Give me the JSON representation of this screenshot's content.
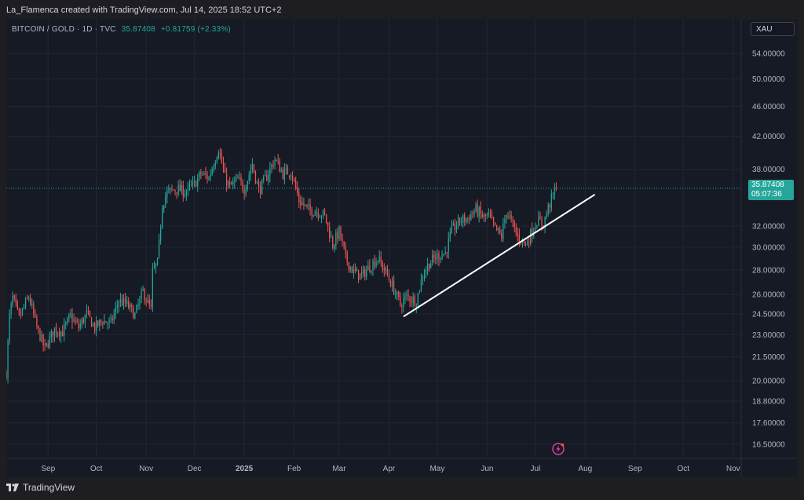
{
  "caption": "La_Flamenca created with TradingView.com, Jul 14, 2025 18:52 UTC+2",
  "symbol": {
    "name": "BITCOIN / GOLD · 1D · TVC",
    "last": "35.87408",
    "change": "+0.81759 (+2.33%)"
  },
  "currency": "XAU",
  "price_tag": {
    "price": "35.87408",
    "countdown": "05:07:36"
  },
  "footer": {
    "brand": "TradingView"
  },
  "colors": {
    "up": "#26a69a",
    "down": "#ef5350",
    "background": "#161a25",
    "grid": "#232632",
    "axis_text": "#b2b5be",
    "trendline": "#ffffff"
  },
  "chart_data": {
    "type": "candlestick",
    "scale": "log",
    "grid": true,
    "y_ticks": [
      16.5,
      17.6,
      18.8,
      20.0,
      21.5,
      23.0,
      24.5,
      26.0,
      28.0,
      30.0,
      32.0,
      38.0,
      42.0,
      46.0,
      50.0,
      54.0
    ],
    "y_tick_labels": [
      "16.50000",
      "17.60000",
      "18.80000",
      "20.00000",
      "21.50000",
      "23.00000",
      "24.50000",
      "26.00000",
      "28.00000",
      "30.00000",
      "32.00000",
      "38.00000",
      "42.00000",
      "46.00000",
      "50.00000",
      "54.00000"
    ],
    "x_labels": [
      "Sep",
      "Oct",
      "Nov",
      "Dec",
      "2025",
      "Feb",
      "Mar",
      "Apr",
      "May",
      "Jun",
      "Jul",
      "Aug",
      "Sep",
      "Oct",
      "Nov"
    ],
    "x_label_dates": [
      "2024-09-01",
      "2024-10-01",
      "2024-11-01",
      "2024-12-01",
      "2025-01-01",
      "2025-02-01",
      "2025-03-01",
      "2025-04-01",
      "2025-05-01",
      "2025-06-01",
      "2025-07-01",
      "2025-08-01",
      "2025-09-01",
      "2025-10-01",
      "2025-11-01"
    ],
    "x_range": [
      "2024-08-06",
      "2025-11-06"
    ],
    "y_range": [
      15.8,
      60.0
    ],
    "last_price": 35.87408,
    "anchors": [
      [
        "2024-08-06",
        20.5
      ],
      [
        "2024-08-08",
        24.3
      ],
      [
        "2024-08-10",
        25.7
      ],
      [
        "2024-08-14",
        24.2
      ],
      [
        "2024-08-20",
        25.8
      ],
      [
        "2024-08-25",
        23.5
      ],
      [
        "2024-08-30",
        22.0
      ],
      [
        "2024-09-05",
        23.4
      ],
      [
        "2024-09-10",
        23.2
      ],
      [
        "2024-09-15",
        24.3
      ],
      [
        "2024-09-20",
        23.5
      ],
      [
        "2024-09-25",
        24.5
      ],
      [
        "2024-09-30",
        23.5
      ],
      [
        "2024-10-05",
        24.0
      ],
      [
        "2024-10-10",
        23.8
      ],
      [
        "2024-10-15",
        25.5
      ],
      [
        "2024-10-20",
        25.2
      ],
      [
        "2024-10-25",
        24.4
      ],
      [
        "2024-10-30",
        26.2
      ],
      [
        "2024-11-02",
        25.3
      ],
      [
        "2024-11-04",
        24.8
      ],
      [
        "2024-11-05",
        27.8
      ],
      [
        "2024-11-08",
        28.6
      ],
      [
        "2024-11-09",
        30.2
      ],
      [
        "2024-11-11",
        34.2
      ],
      [
        "2024-11-14",
        35.4
      ],
      [
        "2024-11-20",
        35.8
      ],
      [
        "2024-11-25",
        35.5
      ],
      [
        "2024-12-01",
        36.3
      ],
      [
        "2024-12-05",
        37.5
      ],
      [
        "2024-12-10",
        37.0
      ],
      [
        "2024-12-16",
        40.5
      ],
      [
        "2024-12-20",
        37.0
      ],
      [
        "2024-12-23",
        36.0
      ],
      [
        "2024-12-28",
        36.8
      ],
      [
        "2025-01-01",
        35.8
      ],
      [
        "2025-01-06",
        38.6
      ],
      [
        "2025-01-10",
        35.6
      ],
      [
        "2025-01-15",
        37.2
      ],
      [
        "2025-01-20",
        39.2
      ],
      [
        "2025-01-25",
        37.5
      ],
      [
        "2025-01-30",
        37.8
      ],
      [
        "2025-02-04",
        34.6
      ],
      [
        "2025-02-10",
        33.6
      ],
      [
        "2025-02-15",
        33.5
      ],
      [
        "2025-02-20",
        33.0
      ],
      [
        "2025-02-25",
        30.2
      ],
      [
        "2025-03-01",
        31.5
      ],
      [
        "2025-03-05",
        29.0
      ],
      [
        "2025-03-10",
        27.8
      ],
      [
        "2025-03-15",
        27.5
      ],
      [
        "2025-03-20",
        28.3
      ],
      [
        "2025-03-25",
        29.0
      ],
      [
        "2025-03-30",
        27.8
      ],
      [
        "2025-04-04",
        26.4
      ],
      [
        "2025-04-08",
        25.2
      ],
      [
        "2025-04-12",
        25.8
      ],
      [
        "2025-04-18",
        25.5
      ],
      [
        "2025-04-22",
        27.6
      ],
      [
        "2025-04-26",
        28.6
      ],
      [
        "2025-05-01",
        29.2
      ],
      [
        "2025-05-06",
        29.5
      ],
      [
        "2025-05-10",
        31.5
      ],
      [
        "2025-05-15",
        32.5
      ],
      [
        "2025-05-20",
        32.8
      ],
      [
        "2025-05-25",
        33.6
      ],
      [
        "2025-05-30",
        32.8
      ],
      [
        "2025-06-02",
        33.0
      ],
      [
        "2025-06-06",
        31.7
      ],
      [
        "2025-06-10",
        31.0
      ],
      [
        "2025-06-13",
        33.5
      ],
      [
        "2025-06-17",
        32.0
      ],
      [
        "2025-06-20",
        31.0
      ],
      [
        "2025-06-23",
        30.6
      ],
      [
        "2025-06-25",
        30.2
      ],
      [
        "2025-06-28",
        31.2
      ],
      [
        "2025-07-02",
        32.5
      ],
      [
        "2025-07-06",
        32.2
      ],
      [
        "2025-07-09",
        33.8
      ],
      [
        "2025-07-12",
        35.2
      ],
      [
        "2025-07-14",
        35.87408
      ]
    ],
    "trendline": [
      [
        "2025-04-10",
        24.3
      ],
      [
        "2025-08-07",
        35.2
      ]
    ]
  }
}
